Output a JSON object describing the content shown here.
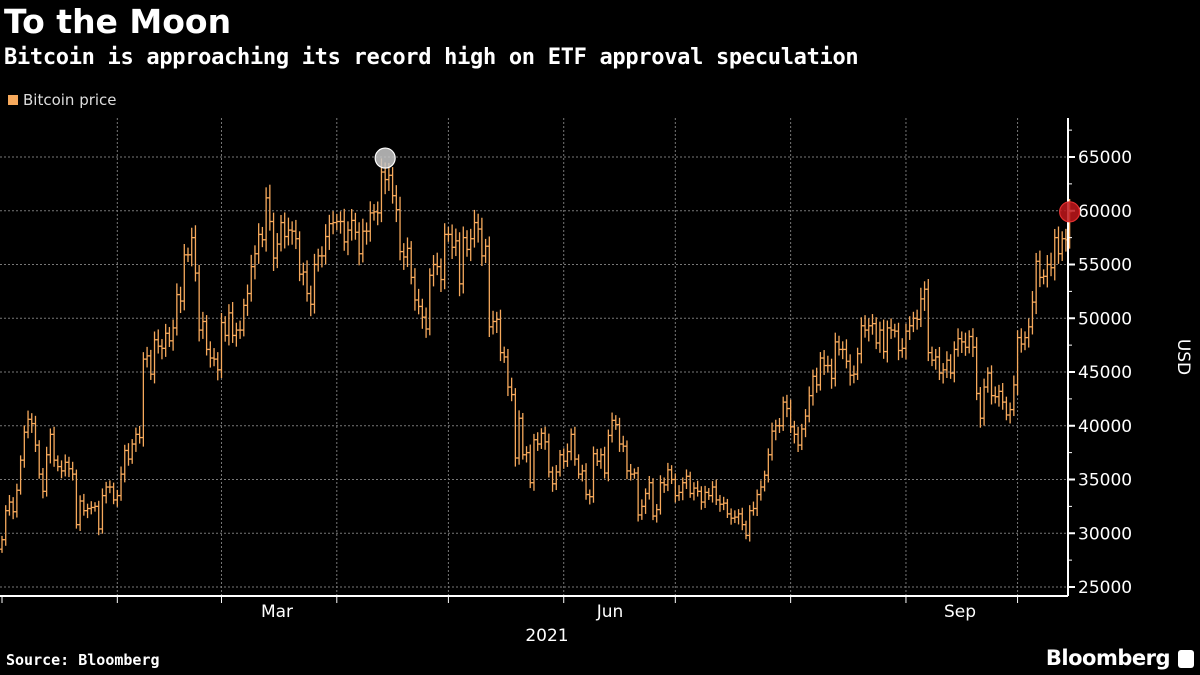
{
  "header": {
    "title": "To the Moon",
    "subtitle": "Bitcoin is approaching its record high on ETF approval speculation"
  },
  "legend": {
    "label": "Bitcoin price",
    "color": "#f6a95c"
  },
  "footer": {
    "source": "Source: Bloomberg",
    "brand": "Bloomberg"
  },
  "chart_data": {
    "type": "line",
    "style": "daily price bars",
    "title": "To the Moon",
    "subtitle": "Bitcoin is approaching its record high on ETF approval speculation",
    "ylabel": "USD",
    "xlabel": "2021",
    "ylim": [
      24000,
      68000
    ],
    "yticks": [
      "25000",
      "30000",
      "35000",
      "40000",
      "45000",
      "50000",
      "55000",
      "60000",
      "65000"
    ],
    "xticks": [
      "Mar",
      "Jun",
      "Sep"
    ],
    "xyear": "2021",
    "grid": true,
    "legend_position": "top-left",
    "series": [
      {
        "name": "Bitcoin price",
        "color": "#f6a95c",
        "daily_close_by_month": {
          "2021-01": [
            29400,
            32100,
            32900,
            32000,
            34000,
            36800,
            39400,
            40600,
            40200,
            38200,
            35500,
            33900,
            37300,
            39200,
            36800,
            36200,
            35800,
            36600,
            36000,
            35500,
            30800,
            33000,
            32100,
            32300,
            32400,
            32500,
            30400,
            33500,
            34300,
            34300,
            33100
          ],
          "2021-02": [
            33500,
            35500,
            37700,
            36900,
            38300,
            39200,
            38900,
            46200,
            46500,
            44800,
            48000,
            47400,
            47200,
            48600,
            47900,
            49100,
            52200,
            51600,
            55900,
            55900,
            57500,
            54200,
            48900,
            49700,
            47100,
            46300,
            46200,
            45200
          ],
          "2021-03": [
            49600,
            48400,
            50500,
            48400,
            48900,
            48900,
            51200,
            52300,
            54800,
            56000,
            57800,
            57300,
            61200,
            59000,
            55600,
            56900,
            58900,
            57600,
            58200,
            58100,
            57400,
            54100,
            54300,
            52300,
            51300,
            55000,
            55800,
            55800,
            57600,
            58800,
            58900
          ],
          "2021-04": [
            59000,
            59000,
            57100,
            58200,
            59100,
            58000,
            56000,
            58100,
            58100,
            59800,
            59900,
            59800,
            63600,
            62900,
            63300,
            61400,
            60100,
            56200,
            55700,
            56500,
            53800,
            51700,
            51100,
            50100,
            49000,
            54000,
            55000,
            54800,
            53600,
            57800
          ],
          "2021-05": [
            57800,
            56600,
            57200,
            53200,
            57500,
            56400,
            57400,
            58900,
            58300,
            55800,
            56700,
            49200,
            49700,
            49900,
            46800,
            46400,
            43600,
            42900,
            37000,
            40700,
            37300,
            37500,
            34700,
            38700,
            38300,
            39300,
            38500,
            35700,
            34600,
            35700,
            37300
          ],
          "2021-06": [
            36700,
            37600,
            39200,
            36900,
            35500,
            35800,
            33600,
            33400,
            37400,
            36700,
            37300,
            35600,
            39100,
            40500,
            40100,
            38300,
            38100,
            35800,
            35500,
            35600,
            31700,
            32500,
            33700,
            34700,
            31600,
            32200,
            34700,
            34500,
            35900,
            35000
          ],
          "2021-07": [
            33500,
            33800,
            34700,
            35300,
            33700,
            34200,
            33900,
            32900,
            33800,
            33500,
            34300,
            33100,
            32700,
            32800,
            31800,
            31400,
            31500,
            31800,
            30800,
            29800,
            32100,
            32300,
            33600,
            34300,
            35400,
            37300,
            39500,
            40000,
            40000,
            42200,
            41600
          ],
          "2021-08": [
            39900,
            39200,
            38200,
            39700,
            40900,
            42800,
            44600,
            43800,
            46300,
            45600,
            45600,
            44400,
            47800,
            47100,
            47100,
            46000,
            44700,
            44800,
            46700,
            49300,
            48900,
            49300,
            49500,
            47700,
            48900,
            46900,
            49100,
            48900,
            48800,
            47000,
            47200
          ],
          "2021-09": [
            48800,
            49300,
            50000,
            49900,
            51800,
            52700,
            46800,
            46100,
            46400,
            44900,
            45200,
            46100,
            44900,
            47100,
            48100,
            47800,
            47300,
            48300,
            47300,
            43000,
            40700,
            43600,
            44900,
            42800,
            42700,
            43200,
            42200,
            41000,
            41500,
            43800
          ],
          "2021-10": [
            48200,
            47600,
            48200,
            49200,
            51500,
            55300,
            53800,
            53900,
            55000,
            54700,
            57500,
            56000,
            57400,
            57300,
            59900
          ]
        }
      }
    ],
    "annotations": [
      {
        "marker": "record-high",
        "date": "2021-04-14",
        "value": 64900,
        "color": "#c8c8c8"
      },
      {
        "marker": "latest",
        "date": "2021-10-15",
        "value": 59900,
        "color": "#c0161b"
      }
    ]
  }
}
